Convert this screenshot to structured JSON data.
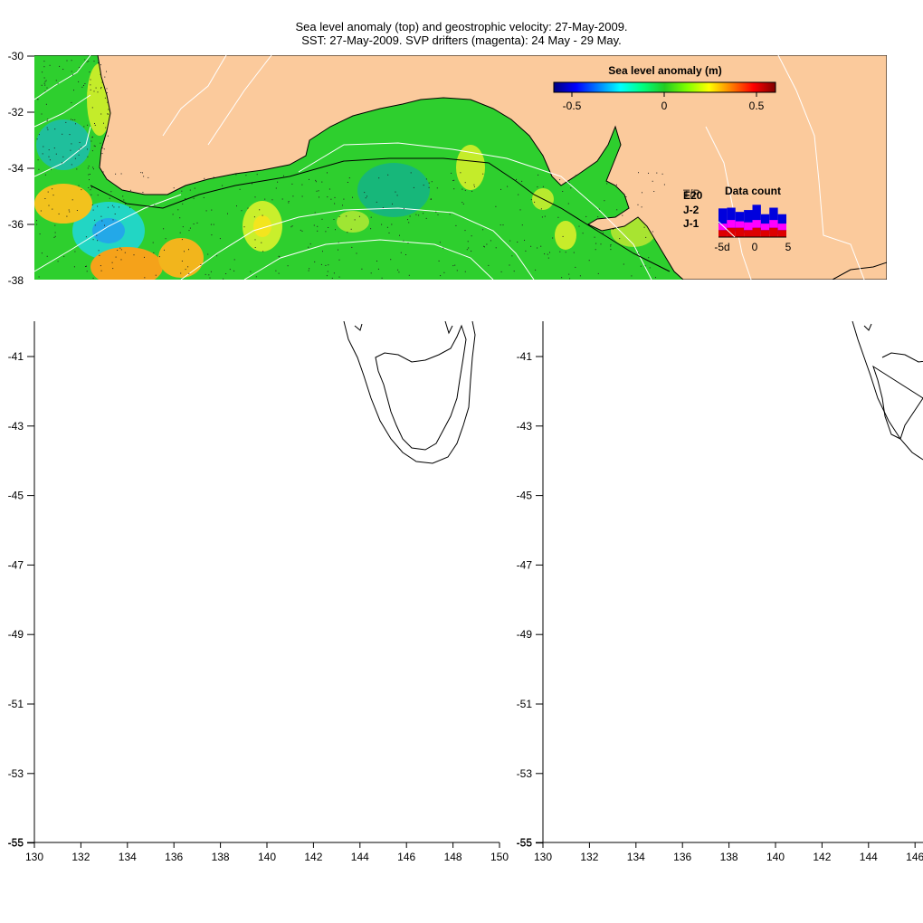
{
  "title": {
    "line1": "Sea level anomaly (top) and geostrophic velocity: 27-May-2009.",
    "line2": "SST: 27-May-2009. SVP drifters (magenta): 24 May - 29 May."
  },
  "top_map": {
    "lat_ticks": [
      "-30",
      "-32",
      "-34",
      "-36",
      "-38"
    ],
    "colorbar": {
      "label": "Sea level anomaly (m)",
      "ticks": [
        "-0.5",
        "0",
        "0.5"
      ],
      "colors": [
        "#00007f",
        "#0000ff",
        "#007fff",
        "#00ffff",
        "#00ff80",
        "#22cc22",
        "#7fff00",
        "#ffff00",
        "#ff7f00",
        "#ff0000",
        "#7f0000"
      ]
    },
    "data_count": {
      "title": "Data count",
      "legend": [
        {
          "label": "E20",
          "color": "#0000dd"
        },
        {
          "label": "J-2",
          "color": "#ff00ff"
        },
        {
          "label": "J-1",
          "color": "#dd0000"
        }
      ],
      "legend_overlap": "T/P",
      "x_ticks": [
        "-5d",
        "0",
        "5"
      ],
      "bars": {
        "j1": [
          3,
          4,
          4,
          3,
          4,
          3,
          4,
          3
        ],
        "j2": [
          5,
          6,
          5,
          6,
          6,
          5,
          6,
          5
        ],
        "e20": [
          9,
          8,
          7,
          8,
          9,
          7,
          8,
          7
        ]
      }
    },
    "land_color": "#fbca9c"
  },
  "left_map": {
    "lat_ticks": [
      "-41",
      "-43",
      "-45",
      "-47",
      "-49",
      "-51",
      "-53",
      "-55"
    ],
    "lon_ticks": [
      "130",
      "132",
      "134",
      "136",
      "138",
      "140",
      "142",
      "144",
      "146",
      "148",
      "150"
    ]
  },
  "right_map": {
    "lat_ticks": [
      "-41",
      "-43",
      "-45",
      "-47",
      "-49",
      "-51",
      "-53",
      "-55"
    ],
    "lon_ticks": [
      "130",
      "132",
      "134",
      "136",
      "138",
      "140",
      "142",
      "144",
      "146"
    ]
  }
}
